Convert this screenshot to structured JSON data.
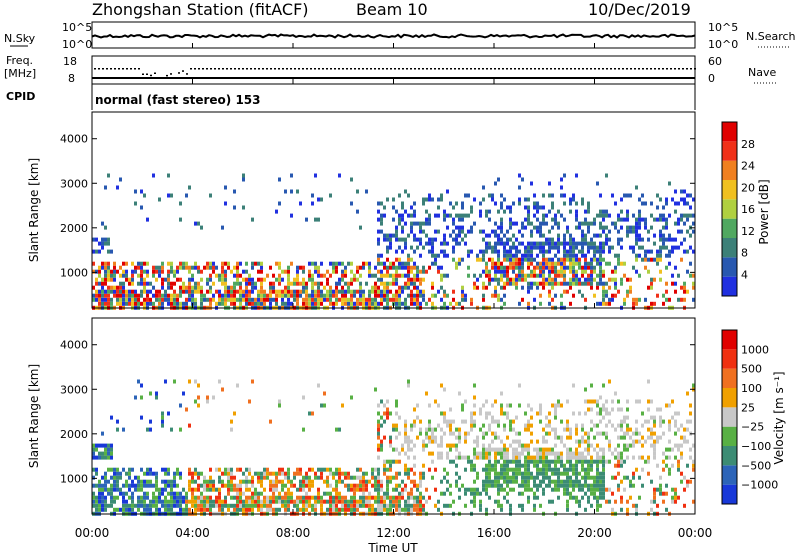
{
  "header": {
    "station": "Zhongshan Station (fitACF)",
    "beam": "Beam 10",
    "date": "10/Dec/2019",
    "mode": "normal (fast stereo) 153"
  },
  "labels": {
    "nsky": "N.Sky",
    "nsearch": "N.Search",
    "freq_line1": "Freq.",
    "freq_line2": "[MHz]",
    "nave": "Nave",
    "cpid": "CPID",
    "tick_1e5": "10^5",
    "tick_1e0": "10^0",
    "freq_hi": "18",
    "freq_lo": "8",
    "nave_hi": "60",
    "nave_lo": "0"
  },
  "colors": {
    "power_scale": [
      "#2030e0",
      "#2858b0",
      "#3c8078",
      "#50a860",
      "#b0d040",
      "#f0c020",
      "#f08020",
      "#f03018",
      "#e00000"
    ],
    "velocity_scale": [
      "#1838d8",
      "#2c64b8",
      "#3c8c74",
      "#58b044",
      "#c8c8c8",
      "#f0a000",
      "#f07020",
      "#f03010",
      "#e00000"
    ]
  },
  "chart_data": [
    {
      "type": "heatmap",
      "name": "power",
      "ylabel": "Slant Range [km]",
      "y_ticks": [
        "1000",
        "2000",
        "3000",
        "4000"
      ],
      "ylim": [
        200,
        4600
      ],
      "colorbar_label": "Power [dB]",
      "colorbar_ticks": [
        "4",
        "8",
        "12",
        "16",
        "20",
        "24",
        "28"
      ],
      "colorbar_range": [
        0,
        30
      ]
    },
    {
      "type": "heatmap",
      "name": "velocity",
      "ylabel": "Slant Range [km]",
      "y_ticks": [
        "1000",
        "2000",
        "3000",
        "4000"
      ],
      "ylim": [
        200,
        4600
      ],
      "colorbar_label": "Velocity [m s⁻¹]",
      "colorbar_ticks": [
        "1000",
        "500",
        "100",
        "25",
        "−25",
        "−100",
        "−500",
        "−1000"
      ]
    }
  ],
  "x_ticks": [
    "00:00",
    "04:00",
    "08:00",
    "12:00",
    "16:00",
    "20:00",
    "00:00"
  ],
  "xlabel": "Time UT"
}
